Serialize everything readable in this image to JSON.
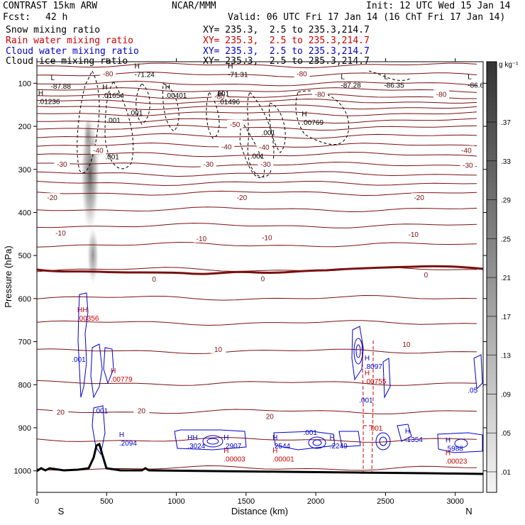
{
  "header": {
    "model": "CONTRAST 15km ARW",
    "center": "NCAR/MMM",
    "init": "Init: 12 UTC Wed 15 Jan 14",
    "fcst_label": "Fcst:",
    "fcst_value": "42 h",
    "valid": "Valid: 06 UTC Fri 17 Jan 14 (16 ChT Fri 17 Jan 14)"
  },
  "fields": [
    {
      "name": "Snow mixing ratio",
      "xy": "XY= 235.3,  2.5 to 235.3,214.7",
      "color": "#000000"
    },
    {
      "name": "Rain water mixing ratio",
      "xy": "XY= 235.3,  2.5 to 235.3,214.7",
      "color": "#cc0000"
    },
    {
      "name": "Cloud water mixing ratio",
      "xy": "XY= 235.3,  2.5 to 235.3,214.7",
      "color": "#0000cc"
    },
    {
      "name": "Cloud ice mixing ratio",
      "xy": "XY= 235.3,  2.5 to 235.3,214.7",
      "color": "#000000"
    }
  ],
  "chart_data": {
    "type": "cross-section",
    "xlabel": "Distance (km)",
    "ylabel": "Pressure (hPa)",
    "x_ticks": [
      0,
      500,
      1000,
      1500,
      2000,
      2500,
      3000
    ],
    "y_ticks": [
      100,
      200,
      300,
      400,
      500,
      600,
      700,
      800,
      900,
      1000
    ],
    "xlim": [
      0,
      3200
    ],
    "ylim": [
      1050,
      50
    ],
    "end_labels": {
      "left": "S",
      "right": "N"
    },
    "colorbar": {
      "unit": "g kg⁻¹",
      "ticks": [
        ".37",
        ".33",
        ".29",
        ".25",
        ".21",
        ".17",
        ".13",
        ".09",
        ".05",
        ".01"
      ],
      "values": [
        0.37,
        0.33,
        0.29,
        0.25,
        0.21,
        0.17,
        0.13,
        0.09,
        0.05,
        0.01
      ]
    },
    "isotherm_labels": [
      {
        "label": "-80",
        "x": 510,
        "p": 77
      },
      {
        "label": "-80",
        "x": 1310,
        "p": 130
      },
      {
        "label": "-80",
        "x": 2030,
        "p": 125
      },
      {
        "label": "-80",
        "x": 1900,
        "p": 77
      },
      {
        "label": "-80",
        "x": 2900,
        "p": 125
      },
      {
        "label": "-50",
        "x": 1420,
        "p": 195
      },
      {
        "label": "-40",
        "x": 440,
        "p": 255
      },
      {
        "label": "-40",
        "x": 1360,
        "p": 247
      },
      {
        "label": "-40",
        "x": 1630,
        "p": 248
      },
      {
        "label": "-40",
        "x": 3080,
        "p": 255
      },
      {
        "label": "-30",
        "x": 180,
        "p": 287
      },
      {
        "label": "-30",
        "x": 1230,
        "p": 287
      },
      {
        "label": "-30",
        "x": 1640,
        "p": 287
      },
      {
        "label": "-30",
        "x": 3090,
        "p": 290
      },
      {
        "label": "-20",
        "x": 110,
        "p": 365
      },
      {
        "label": "-20",
        "x": 1470,
        "p": 365
      },
      {
        "label": "-20",
        "x": 2740,
        "p": 365
      },
      {
        "label": "-10",
        "x": 170,
        "p": 447
      },
      {
        "label": "-10",
        "x": 1180,
        "p": 460
      },
      {
        "label": "-10",
        "x": 1650,
        "p": 458
      },
      {
        "label": "-10",
        "x": 2700,
        "p": 450
      },
      {
        "label": "0",
        "x": 840,
        "p": 554
      },
      {
        "label": "0",
        "x": 1620,
        "p": 553
      },
      {
        "label": "0",
        "x": 2790,
        "p": 544
      },
      {
        "label": "10",
        "x": 1300,
        "p": 717
      },
      {
        "label": "10",
        "x": 2650,
        "p": 706
      },
      {
        "label": "20",
        "x": 170,
        "p": 863
      },
      {
        "label": "20",
        "x": 750,
        "p": 860
      },
      {
        "label": "20",
        "x": 1670,
        "p": 873
      }
    ],
    "extrema_labels": [
      {
        "mark": "L",
        "text": "-87.88",
        "x": 130,
        "p": 104,
        "color": "#000000"
      },
      {
        "mark": "H",
        "text": "-71.24",
        "x": 730,
        "p": 77,
        "color": "#000000"
      },
      {
        "mark": "H",
        "text": "-71.31",
        "x": 1400,
        "p": 77,
        "color": "#000000"
      },
      {
        "mark": "L",
        "text": "-87.28",
        "x": 2210,
        "p": 102,
        "color": "#000000"
      },
      {
        "mark": "L",
        "text": "-86.35",
        "x": 2520,
        "p": 102,
        "color": "#000000"
      },
      {
        "mark": "L",
        "text": "-86.6",
        "x": 3120,
        "p": 102,
        "color": "#000000"
      },
      {
        "mark": "H",
        "text": ".01654",
        "x": 500,
        "p": 126,
        "color": "#000000"
      },
      {
        "mark": "H",
        "text": ".00401",
        "x": 950,
        "p": 126,
        "color": "#000000"
      },
      {
        "mark": "H",
        "text": ".01236",
        "x": 40,
        "p": 140,
        "color": "#000000"
      },
      {
        "mark": "H",
        "text": ".01496",
        "x": 1330,
        "p": 141,
        "color": "#000000"
      },
      {
        "mark": "H",
        "text": ".00769",
        "x": 1930,
        "p": 188,
        "color": "#000000"
      },
      {
        "mark": "HH",
        "text": ".00356",
        "x": 320,
        "p": 643,
        "color": "#cc0000"
      },
      {
        "mark": "H",
        "text": ".8097",
        "x": 2380,
        "p": 755,
        "color": "#0000cc"
      },
      {
        "mark": "H",
        "text": ".00755",
        "x": 2380,
        "p": 790,
        "color": "#cc0000"
      },
      {
        "mark": "H",
        "text": ".00779",
        "x": 560,
        "p": 785,
        "color": "#cc0000"
      },
      {
        "mark": "H",
        "text": ".2094",
        "x": 620,
        "p": 933,
        "color": "#0000cc"
      },
      {
        "mark": "HH",
        "text": ".3024",
        "x": 1110,
        "p": 940,
        "color": "#0000cc"
      },
      {
        "mark": "H",
        "text": ".2907",
        "x": 1370,
        "p": 940,
        "color": "#0000cc"
      },
      {
        "mark": "H",
        "text": ".00003",
        "x": 1370,
        "p": 970,
        "color": "#cc0000"
      },
      {
        "mark": "H",
        "text": ".2544",
        "x": 1720,
        "p": 940,
        "color": "#0000cc"
      },
      {
        "mark": "H",
        "text": ".00001",
        "x": 1720,
        "p": 970,
        "color": "#cc0000"
      },
      {
        "mark": "H",
        "text": ".2249",
        "x": 2130,
        "p": 940,
        "color": "#0000cc"
      },
      {
        "mark": "H",
        "text": ".1354",
        "x": 2670,
        "p": 925,
        "color": "#0000cc"
      },
      {
        "mark": "H",
        "text": ".5988",
        "x": 2960,
        "p": 945,
        "color": "#0000cc"
      },
      {
        "mark": "H",
        "text": ".00023",
        "x": 2960,
        "p": 975,
        "color": "#cc0000"
      },
      {
        "mark": "",
        "text": ".05",
        "x": 3120,
        "p": 810,
        "color": "#0000cc"
      }
    ],
    "contour_value_labels": [
      {
        "text": ".001",
        "x": 1330,
        "p": 123,
        "color": "#000000"
      },
      {
        "text": ".001",
        "x": 710,
        "p": 168,
        "color": "#000000"
      },
      {
        "text": ".001",
        "x": 550,
        "p": 185,
        "color": "#000000"
      },
      {
        "text": ".001",
        "x": 1660,
        "p": 214,
        "color": "#000000"
      },
      {
        "text": ".001",
        "x": 540,
        "p": 270,
        "color": "#000000"
      },
      {
        "text": ".001",
        "x": 1580,
        "p": 268,
        "color": "#000000"
      },
      {
        "text": ".001",
        "x": 300,
        "p": 740,
        "color": "#0000cc"
      },
      {
        "text": ".001",
        "x": 460,
        "p": 860,
        "color": "#0000cc"
      },
      {
        "text": ".001",
        "x": 1960,
        "p": 910,
        "color": "#0000cc"
      },
      {
        "text": ".001",
        "x": 2430,
        "p": 900,
        "color": "#cc0000"
      },
      {
        "text": ".001",
        "x": 2360,
        "p": 835,
        "color": "#0000cc"
      }
    ]
  }
}
